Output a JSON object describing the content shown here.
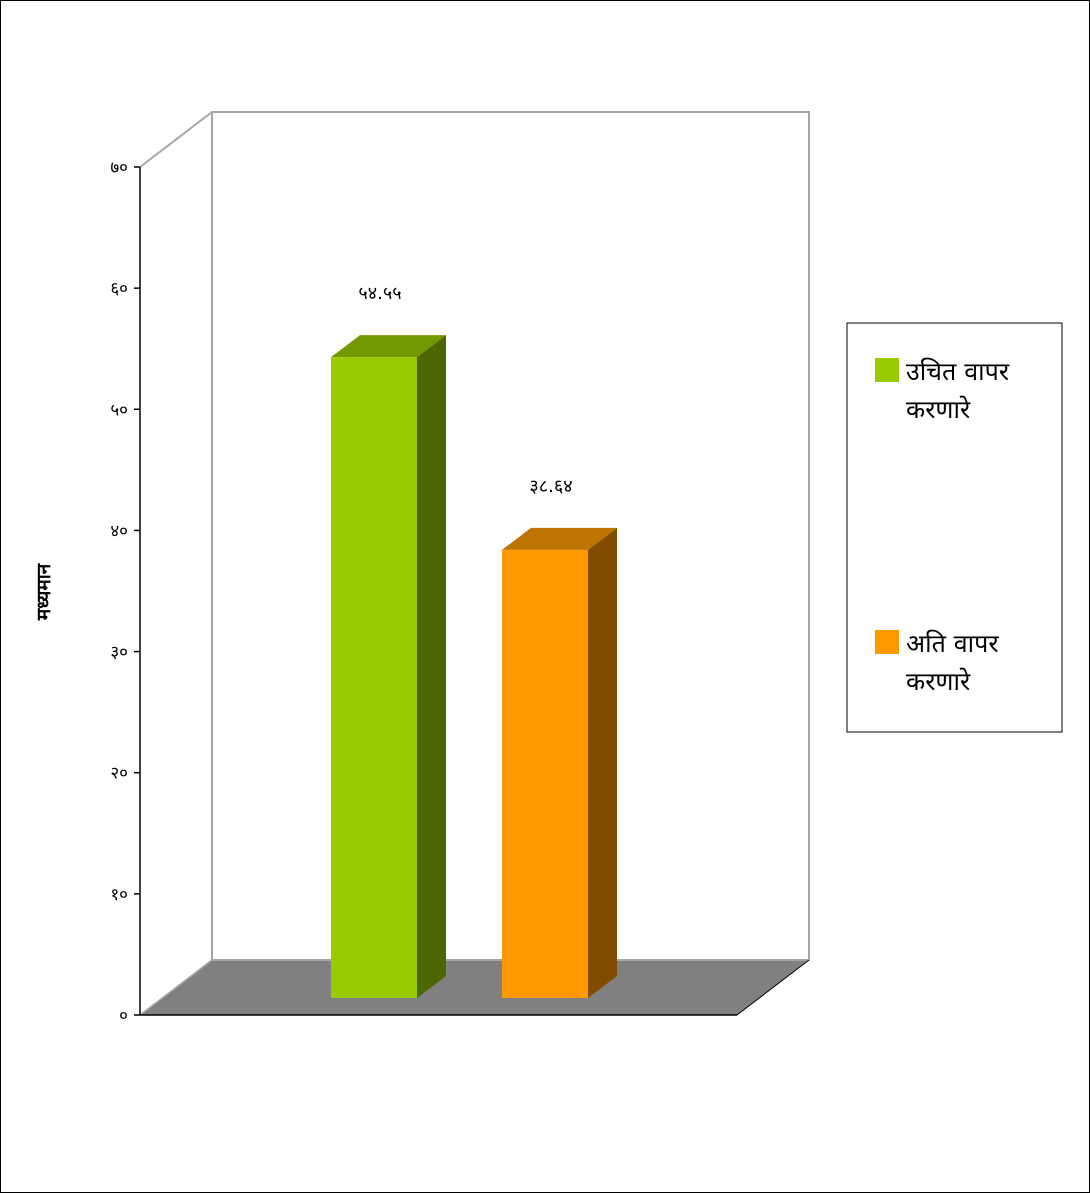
{
  "chart_data": {
    "type": "bar",
    "style": "3d",
    "title": "",
    "xlabel": "",
    "ylabel": "मध्यमान",
    "ylim": [
      0,
      70
    ],
    "y_tick_values": [
      0,
      10,
      20,
      30,
      40,
      50,
      60,
      70
    ],
    "y_tick_labels": [
      "०",
      "१०",
      "२०",
      "३०",
      "४०",
      "५०",
      "६०",
      "७०"
    ],
    "grid": false,
    "legend_position": "right",
    "series": [
      {
        "name": "उचित वापर करणारे",
        "name_lines": [
          "उचित वापर",
          "करणारे"
        ],
        "value": 54.55,
        "value_label": "५४.५५",
        "color": "#99cc00",
        "top_color": "#739900",
        "side_color": "#4d6600"
      },
      {
        "name": "अति वापर करणारे",
        "name_lines": [
          "अति वापर",
          "करणारे"
        ],
        "value": 38.64,
        "value_label": "३८.६४",
        "color": "#ff9900",
        "top_color": "#bf7300",
        "side_color": "#804d00"
      }
    ],
    "floor_color": "#808080",
    "wall_line_color": "#a6a6a6"
  }
}
